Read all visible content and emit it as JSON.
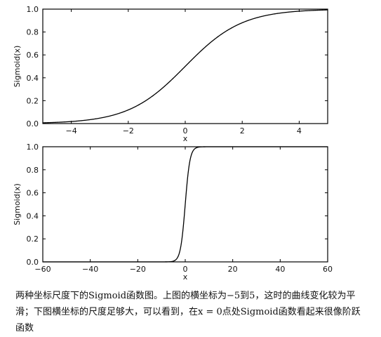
{
  "chart_data": [
    {
      "type": "line",
      "function": "sigmoid",
      "xlim": [
        -5,
        5
      ],
      "ylim": [
        0.0,
        1.0
      ],
      "xticks": [
        -4,
        -2,
        0,
        2,
        4
      ],
      "xtick_labels": [
        "−4",
        "−2",
        "0",
        "2",
        "4"
      ],
      "yticks": [
        0.0,
        0.2,
        0.4,
        0.6,
        0.8,
        1.0
      ],
      "ytick_labels": [
        "0.0",
        "0.2",
        "0.4",
        "0.6",
        "0.8",
        "1.0"
      ],
      "xlabel": "x",
      "ylabel": "Sigmoid(x)",
      "series": [
        {
          "x": [
            -5,
            -4,
            -3,
            -2,
            -1,
            0,
            1,
            2,
            3,
            4,
            5
          ],
          "values": [
            0.007,
            0.018,
            0.047,
            0.119,
            0.269,
            0.5,
            0.731,
            0.881,
            0.953,
            0.982,
            0.993
          ]
        }
      ],
      "grid": false
    },
    {
      "type": "line",
      "function": "sigmoid",
      "xlim": [
        -60,
        60
      ],
      "ylim": [
        0.0,
        1.0
      ],
      "xticks": [
        -60,
        -40,
        -20,
        0,
        20,
        40,
        60
      ],
      "xtick_labels": [
        "−60",
        "−40",
        "−20",
        "0",
        "20",
        "40",
        "60"
      ],
      "yticks": [
        0.0,
        0.2,
        0.4,
        0.6,
        0.8,
        1.0
      ],
      "ytick_labels": [
        "0.0",
        "0.2",
        "0.4",
        "0.6",
        "0.8",
        "1.0"
      ],
      "xlabel": "x",
      "ylabel": "Sigmoid(x)",
      "series": [
        {
          "x": [
            -60,
            -10,
            -5,
            -3,
            -2,
            -1,
            0,
            1,
            2,
            3,
            5,
            10,
            60
          ],
          "values": [
            0.0,
            0.0,
            0.007,
            0.047,
            0.119,
            0.269,
            0.5,
            0.731,
            0.881,
            0.953,
            0.993,
            1.0,
            1.0
          ]
        }
      ],
      "grid": false
    }
  ],
  "caption": "两种坐标尺度下的Sigmoid函数图。上图的横坐标为−5到5，这时的曲线变化较为平滑；下图横坐标的尺度足够大，可以看到，在x = 0点处Sigmoid函数看起来很像阶跃函数"
}
